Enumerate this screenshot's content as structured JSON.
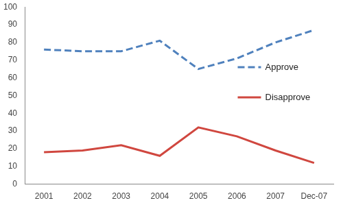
{
  "chart_data": {
    "type": "line",
    "categories": [
      "2001",
      "2002",
      "2003",
      "2004",
      "2005",
      "2006",
      "2007",
      "Dec-07"
    ],
    "series": [
      {
        "name": "Approve",
        "color": "#4f81bd",
        "line_style": "dashed",
        "values": [
          76,
          75,
          75,
          81,
          65,
          71,
          80,
          87
        ]
      },
      {
        "name": "Disapprove",
        "color": "#d0473f",
        "line_style": "solid",
        "values": [
          18,
          19,
          22,
          16,
          32,
          27,
          19,
          12
        ]
      }
    ],
    "marker": "none",
    "ylim": [
      0,
      100
    ],
    "yticks": [
      0,
      10,
      20,
      30,
      40,
      50,
      60,
      70,
      80,
      90,
      100
    ],
    "grid": false,
    "legend": "right"
  }
}
